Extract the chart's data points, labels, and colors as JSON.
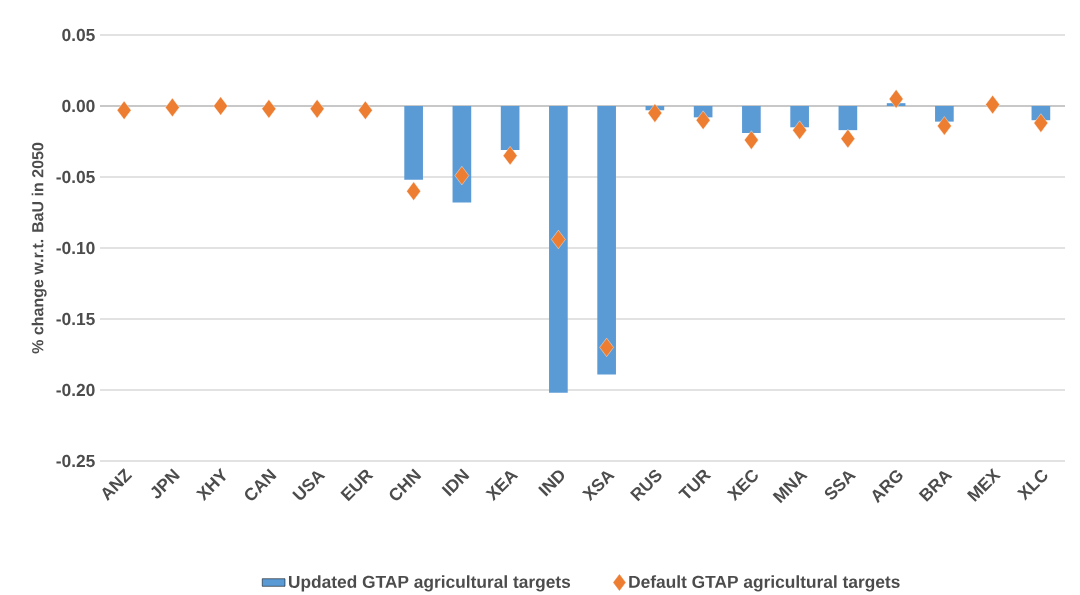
{
  "chart_data": {
    "type": "bar",
    "ylabel": "% change w.r.t. BaU in 2050",
    "categories": [
      "ANZ",
      "JPN",
      "XHY",
      "CAN",
      "USA",
      "EUR",
      "CHN",
      "IDN",
      "XEA",
      "IND",
      "XSA",
      "RUS",
      "TUR",
      "XEC",
      "MNA",
      "SSA",
      "ARG",
      "BRA",
      "MEX",
      "XLC"
    ],
    "series": [
      {
        "name": "Updated GTAP agricultural targets",
        "color": "#5b9bd5",
        "values": [
          0,
          0,
          0,
          0,
          0,
          0,
          -0.052,
          -0.068,
          -0.031,
          -0.202,
          -0.189,
          -0.003,
          -0.008,
          -0.019,
          -0.015,
          -0.017,
          0.002,
          -0.011,
          0,
          -0.01
        ]
      },
      {
        "name": "Default GTAP agricultural targets",
        "type": "scatter",
        "marker": "diamond",
        "color": "#ed7d31",
        "values": [
          -0.003,
          -0.001,
          0.0,
          -0.002,
          -0.002,
          -0.003,
          -0.06,
          -0.049,
          -0.035,
          -0.094,
          -0.17,
          -0.005,
          -0.01,
          -0.024,
          -0.017,
          -0.023,
          0.005,
          -0.014,
          0.001,
          -0.012
        ]
      }
    ],
    "ylim": [
      -0.25,
      0.05
    ],
    "yticks": [
      {
        "value": -0.25,
        "label": "-0.25"
      },
      {
        "value": -0.2,
        "label": "-0.20"
      },
      {
        "value": -0.15,
        "label": "-0.15"
      },
      {
        "value": -0.1,
        "label": "-0.10"
      },
      {
        "value": -0.05,
        "label": "-0.05"
      },
      {
        "value": 0,
        "label": "0.00"
      },
      {
        "value": 0.05,
        "label": "0.05"
      }
    ],
    "grid": "y",
    "legend": "bottom"
  }
}
